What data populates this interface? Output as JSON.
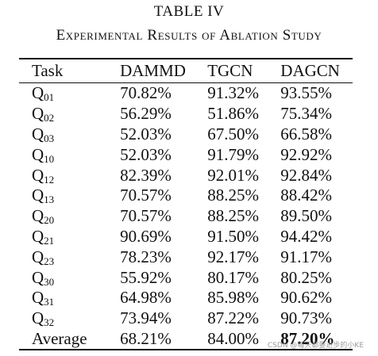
{
  "table_number": "TABLE IV",
  "caption": "Experimental Results of Ablation Study",
  "headers": [
    "Task",
    "DAMMD",
    "TGCN",
    "DAGCN"
  ],
  "rows": [
    {
      "task": "Q",
      "sub": "01",
      "dammd": "70.82%",
      "tgcn": "91.32%",
      "dagcn": "93.55%"
    },
    {
      "task": "Q",
      "sub": "02",
      "dammd": "56.29%",
      "tgcn": "51.86%",
      "dagcn": "75.34%"
    },
    {
      "task": "Q",
      "sub": "03",
      "dammd": "52.03%",
      "tgcn": "67.50%",
      "dagcn": "66.58%"
    },
    {
      "task": "Q",
      "sub": "10",
      "dammd": "52.03%",
      "tgcn": "91.79%",
      "dagcn": "92.92%"
    },
    {
      "task": "Q",
      "sub": "12",
      "dammd": "82.39%",
      "tgcn": "92.01%",
      "dagcn": "92.84%"
    },
    {
      "task": "Q",
      "sub": "13",
      "dammd": "70.57%",
      "tgcn": "88.25%",
      "dagcn": "88.42%"
    },
    {
      "task": "Q",
      "sub": "20",
      "dammd": "70.57%",
      "tgcn": "88.25%",
      "dagcn": "89.50%"
    },
    {
      "task": "Q",
      "sub": "21",
      "dammd": "90.69%",
      "tgcn": "91.50%",
      "dagcn": "94.42%"
    },
    {
      "task": "Q",
      "sub": "23",
      "dammd": "78.23%",
      "tgcn": "92.17%",
      "dagcn": "91.17%"
    },
    {
      "task": "Q",
      "sub": "30",
      "dammd": "55.92%",
      "tgcn": "80.17%",
      "dagcn": "80.25%"
    },
    {
      "task": "Q",
      "sub": "31",
      "dammd": "64.98%",
      "tgcn": "85.98%",
      "dagcn": "90.62%"
    },
    {
      "task": "Q",
      "sub": "32",
      "dammd": "73.94%",
      "tgcn": "87.22%",
      "dagcn": "90.73%"
    }
  ],
  "average": {
    "task": "Average",
    "dammd": "68.21%",
    "tgcn": "84.00%",
    "dagcn": "87.20%"
  },
  "watermark": "CSDN @每天都要进步的小KE"
}
